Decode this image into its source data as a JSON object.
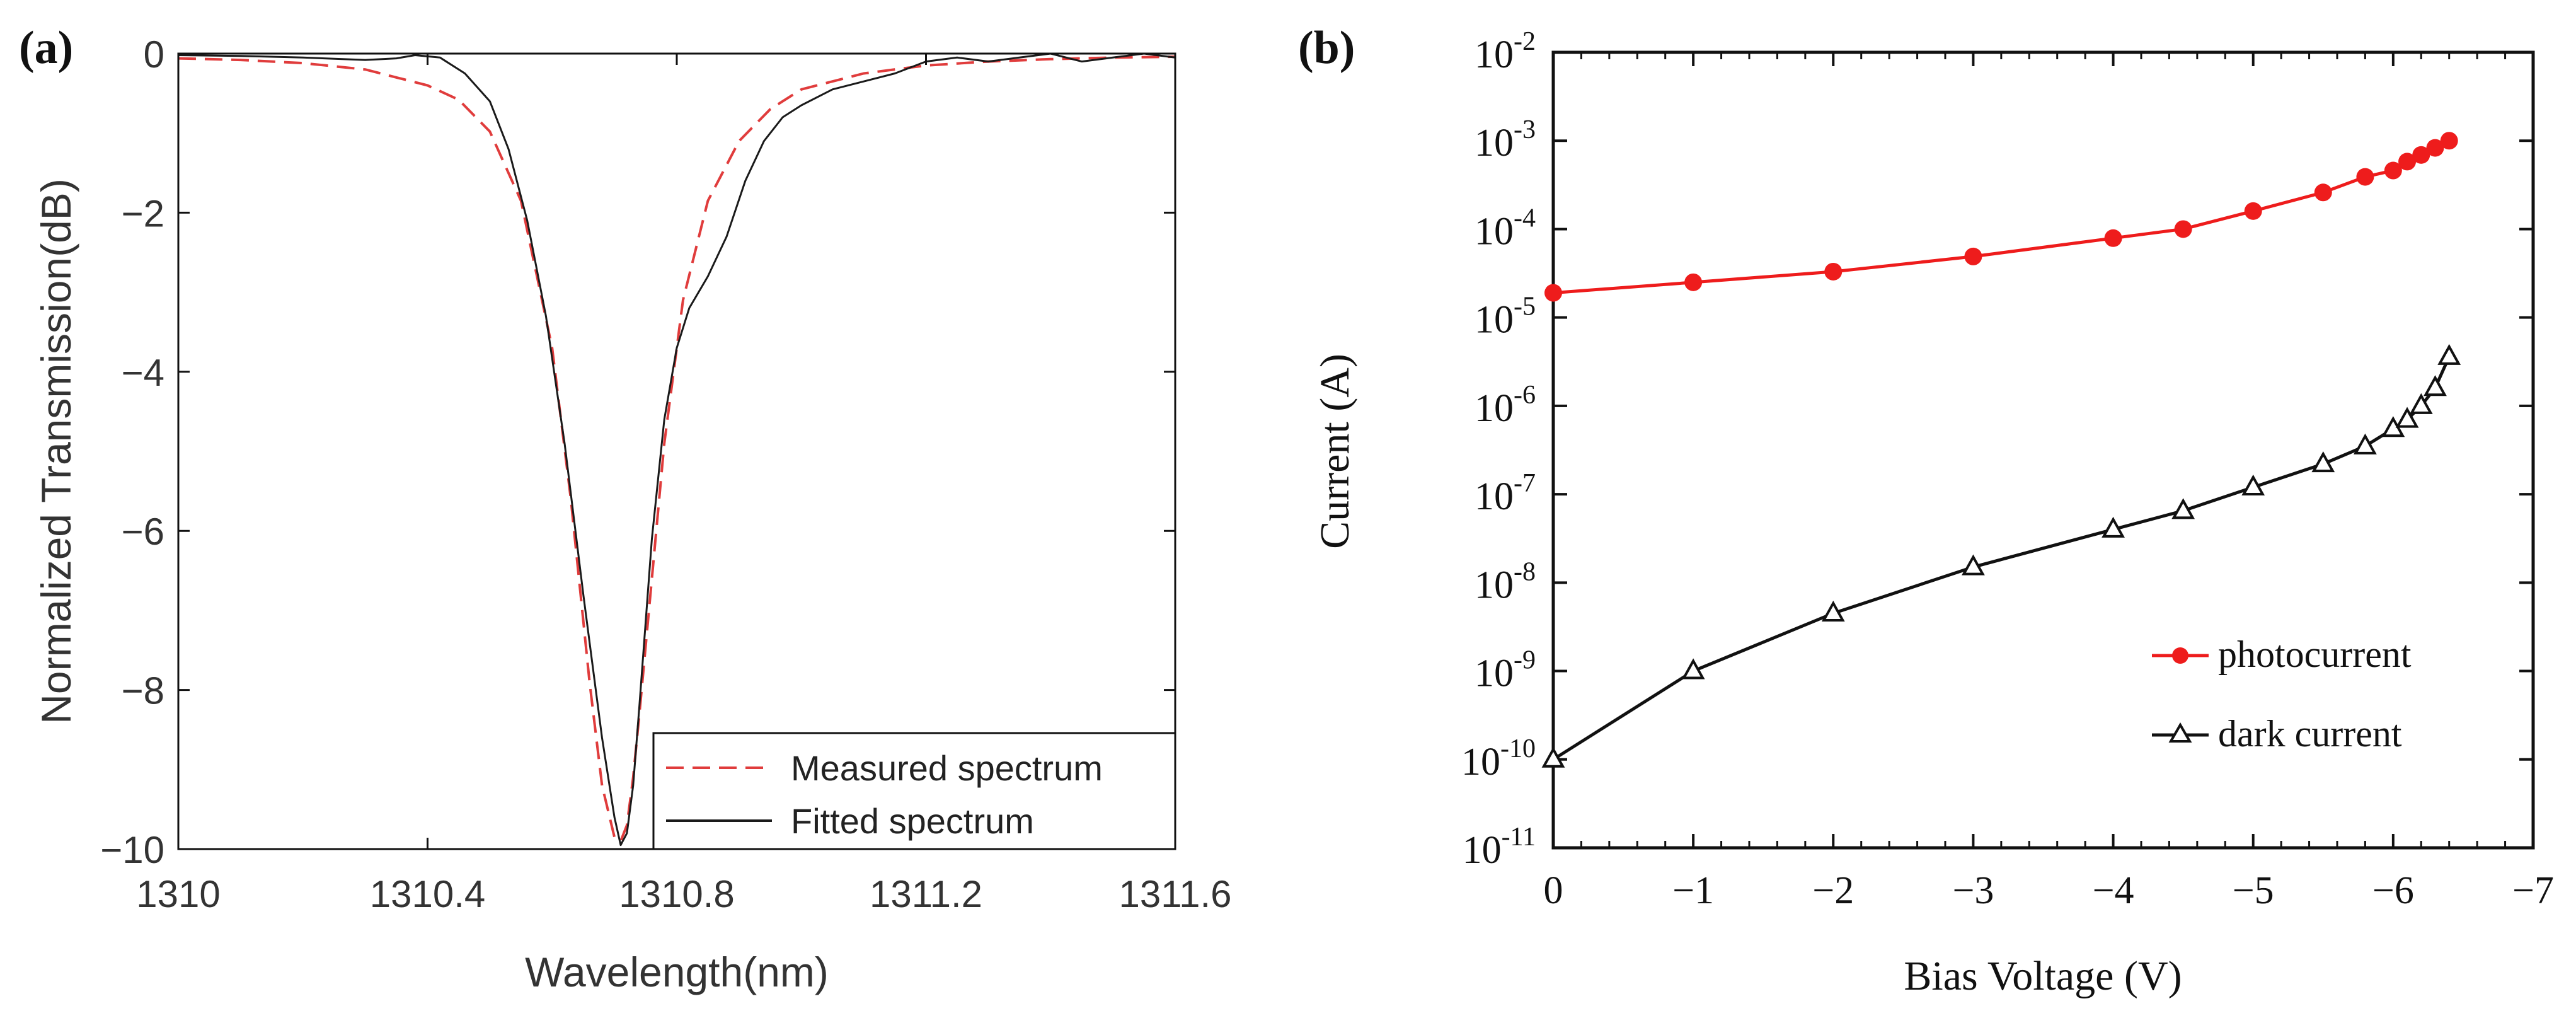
{
  "chart_data": [
    {
      "panel_label": "(a)",
      "type": "line",
      "xlabel": "Wavelength(nm)",
      "ylabel": "Normalized Transmission(dB)",
      "xlim": [
        1310,
        1311.6
      ],
      "ylim": [
        -10,
        0
      ],
      "xticks": [
        1310,
        1310.4,
        1310.8,
        1311.2,
        1311.6
      ],
      "xtick_labels": [
        "1310",
        "1310.4",
        "1310.8",
        "1311.2",
        "1311.6"
      ],
      "yticks": [
        0,
        -2,
        -4,
        -6,
        -8,
        -10
      ],
      "ytick_labels": [
        "0",
        "−2",
        "−4",
        "−6",
        "−8",
        "−10"
      ],
      "legend_position": "bottom-right",
      "series": [
        {
          "name": "Measured spectrum",
          "color": "#e03c3c",
          "dash": true,
          "x": [
            1310.0,
            1310.1,
            1310.2,
            1310.3,
            1310.4,
            1310.45,
            1310.5,
            1310.55,
            1310.6,
            1310.63,
            1310.66,
            1310.68,
            1310.7,
            1310.71,
            1310.72,
            1310.73,
            1310.74,
            1310.76,
            1310.78,
            1310.81,
            1310.85,
            1310.9,
            1310.95,
            1311.0,
            1311.1,
            1311.2,
            1311.3,
            1311.4,
            1311.5,
            1311.6
          ],
          "values": [
            -0.06,
            -0.08,
            -0.12,
            -0.2,
            -0.4,
            -0.58,
            -0.98,
            -1.85,
            -3.7,
            -5.6,
            -7.9,
            -9.2,
            -9.85,
            -9.9,
            -9.7,
            -9.1,
            -8.3,
            -6.6,
            -4.9,
            -3.1,
            -1.85,
            -1.1,
            -0.7,
            -0.45,
            -0.25,
            -0.15,
            -0.1,
            -0.07,
            -0.05,
            -0.04
          ]
        },
        {
          "name": "Fitted spectrum",
          "color": "#1a1a1a",
          "dash": false,
          "x": [
            1310.0,
            1310.1,
            1310.2,
            1310.3,
            1310.35,
            1310.38,
            1310.42,
            1310.46,
            1310.5,
            1310.53,
            1310.56,
            1310.59,
            1310.62,
            1310.65,
            1310.68,
            1310.7,
            1310.71,
            1310.72,
            1310.73,
            1310.74,
            1310.76,
            1310.78,
            1310.8,
            1310.82,
            1310.85,
            1310.88,
            1310.91,
            1310.94,
            1310.97,
            1311.0,
            1311.05,
            1311.1,
            1311.15,
            1311.2,
            1311.25,
            1311.3,
            1311.35,
            1311.4,
            1311.45,
            1311.5,
            1311.55,
            1311.6
          ],
          "values": [
            -0.02,
            -0.03,
            -0.05,
            -0.08,
            -0.06,
            -0.02,
            -0.05,
            -0.25,
            -0.6,
            -1.2,
            -2.1,
            -3.3,
            -4.9,
            -6.8,
            -8.6,
            -9.6,
            -9.95,
            -9.8,
            -9.2,
            -8.2,
            -6.1,
            -4.6,
            -3.7,
            -3.2,
            -2.8,
            -2.3,
            -1.6,
            -1.1,
            -0.8,
            -0.65,
            -0.45,
            -0.35,
            -0.25,
            -0.1,
            -0.05,
            -0.1,
            -0.05,
            0.0,
            -0.1,
            -0.05,
            0.0,
            -0.05
          ]
        }
      ]
    },
    {
      "panel_label": "(b)",
      "type": "line",
      "xlabel": "Bias Voltage (V)",
      "ylabel": "Current (A)",
      "xlim": [
        0,
        -7
      ],
      "ylim": [
        1e-11,
        0.01
      ],
      "yscale": "log",
      "xticks": [
        0,
        -1,
        -2,
        -3,
        -4,
        -5,
        -6,
        -7
      ],
      "xtick_labels": [
        "0",
        "−1",
        "−2",
        "−3",
        "−4",
        "−5",
        "−6",
        "−7"
      ],
      "ytick_bases": [
        "10",
        "10",
        "10",
        "10",
        "10",
        "10",
        "10",
        "10",
        "10",
        "10"
      ],
      "ytick_exponents": [
        "-11",
        "-10",
        "-9",
        "-8",
        "-7",
        "-6",
        "-5",
        "-4",
        "-3",
        "-2"
      ],
      "legend_position": "bottom-right",
      "series": [
        {
          "name": "photocurrent",
          "color": "#ee1c1c",
          "marker": "circle",
          "x": [
            0,
            -1,
            -2,
            -3,
            -4,
            -4.5,
            -5,
            -5.5,
            -5.8,
            -6.0,
            -6.1,
            -6.2,
            -6.3,
            -6.4
          ],
          "values": [
            1.9e-05,
            2.5e-05,
            3.3e-05,
            4.9e-05,
            7.9e-05,
            0.0001,
            0.00016,
            0.00026,
            0.00039,
            0.00046,
            0.00058,
            0.00069,
            0.00083,
            0.001
          ]
        },
        {
          "name": "dark current",
          "color": "#111111",
          "marker": "triangle",
          "x": [
            0,
            -1,
            -2,
            -3,
            -4,
            -4.5,
            -5,
            -5.5,
            -5.8,
            -6.0,
            -6.1,
            -6.2,
            -6.3,
            -6.4
          ],
          "values": [
            1e-10,
            1e-09,
            4.5e-09,
            1.5e-08,
            4e-08,
            6.5e-08,
            1.2e-07,
            2.2e-07,
            3.5e-07,
            5.5e-07,
            7e-07,
            1e-06,
            1.6e-06,
            3.6e-06
          ]
        }
      ]
    }
  ]
}
